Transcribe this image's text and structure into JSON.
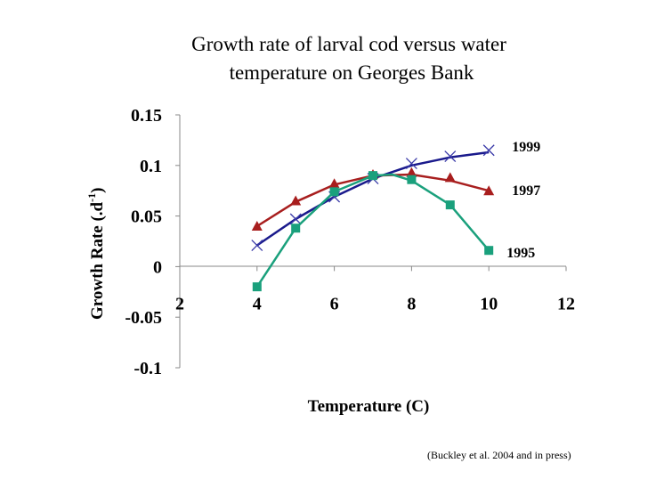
{
  "chart_data": {
    "type": "line",
    "title_lines": [
      "Growth rate of larval cod versus water",
      "temperature on Georges Bank"
    ],
    "xlabel": "Temperature (C)",
    "ylabel_main": "Growth Rate (.d",
    "ylabel_sup": "-1",
    "ylabel_close": ")",
    "xlim": [
      2,
      12
    ],
    "ylim": [
      -0.1,
      0.15
    ],
    "xticks": [
      "2",
      "4",
      "6",
      "8",
      "10",
      "12"
    ],
    "yticks": [
      "0.15",
      "0.1",
      "0.05",
      "0",
      "-0.05",
      "-0.1"
    ],
    "grid": false,
    "series": [
      {
        "name": "1999",
        "color": "#1a1a8c",
        "marker": "x",
        "fit": [
          [
            4,
            0.021
          ],
          [
            5,
            0.047
          ],
          [
            6,
            0.069
          ],
          [
            7,
            0.087
          ],
          [
            8,
            0.1
          ],
          [
            9,
            0.108
          ],
          [
            10,
            0.113
          ]
        ],
        "points": [
          [
            4,
            0.021
          ],
          [
            5,
            0.047
          ],
          [
            6,
            0.069
          ],
          [
            7,
            0.087
          ],
          [
            8,
            0.102
          ],
          [
            9,
            0.109
          ],
          [
            10,
            0.115
          ]
        ]
      },
      {
        "name": "1997",
        "color": "#a81e1e",
        "marker": "triangle",
        "fit": [
          [
            4,
            0.04
          ],
          [
            5,
            0.064
          ],
          [
            6,
            0.081
          ],
          [
            7,
            0.09
          ],
          [
            8,
            0.091
          ],
          [
            9,
            0.085
          ],
          [
            10,
            0.075
          ]
        ],
        "points": [
          [
            4,
            0.04
          ],
          [
            5,
            0.065
          ],
          [
            6,
            0.082
          ],
          [
            7,
            0.091
          ],
          [
            8,
            0.093
          ],
          [
            9,
            0.088
          ],
          [
            10,
            0.075
          ]
        ]
      },
      {
        "name": "1995",
        "color": "#1aa07c",
        "marker": "square",
        "fit": [
          [
            4,
            -0.02
          ],
          [
            5,
            0.038
          ],
          [
            6,
            0.074
          ],
          [
            7,
            0.09
          ],
          [
            7.5,
            0.091
          ],
          [
            8,
            0.085
          ],
          [
            9,
            0.061
          ],
          [
            10,
            0.016
          ]
        ],
        "points": [
          [
            4,
            -0.02
          ],
          [
            5,
            0.038
          ],
          [
            6,
            0.074
          ],
          [
            7,
            0.09
          ],
          [
            8,
            0.086
          ],
          [
            9,
            0.061
          ],
          [
            10,
            0.016
          ]
        ]
      }
    ]
  },
  "citation": "(Buckley et al. 2004 and in press)"
}
